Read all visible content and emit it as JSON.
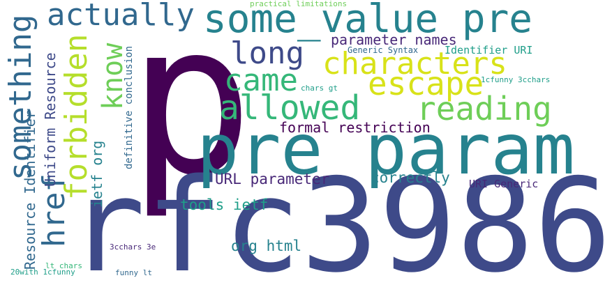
{
  "colors": {
    "dark_purple": "#440154",
    "indigo": "#482878",
    "slate_blue": "#3e4a89",
    "steel_blue": "#31688e",
    "teal": "#26828e",
    "sea_green": "#1f9e89",
    "green": "#35b779",
    "lime": "#6ece58",
    "yellow_green": "#b5de2b",
    "yellow": "#d8e219"
  },
  "words": {
    "p": "p",
    "rfc3986": "rfc3986",
    "pre_param": "pre param",
    "some_value_pre": "some_value pre",
    "actually": "actually",
    "characters": "characters",
    "allowed": "allowed",
    "long": "long",
    "came": "came",
    "escape": "escape",
    "reading": "reading",
    "something": "something",
    "forbidden": "forbidden",
    "know": "know",
    "href": "href",
    "formal_restriction": "formal restriction",
    "parameter_names": "parameter names",
    "url_parameter": "URL parameter",
    "correctly": "correctly",
    "uri_generic": "URI Generic",
    "tools_ietf": "tools ietf",
    "org_html": "org html",
    "generic_syntax": "Generic Syntax",
    "identifier_uri": "Identifier URI",
    "practical_limitations": "practical limitations",
    "chars_gt": "chars gt",
    "1cfunny_3cchars": "1cfunny 3cchars",
    "3cchars_3e": "3cchars 3e",
    "lt_chars": "lt chars",
    "20with_1cfunny": "20with 1cfunny",
    "funny_lt": "funny lt",
    "uniform_resource": "Uniform Resource",
    "resource_identifier": "Resource Identifier",
    "ietf_org": "ietf org",
    "definitive_conclusion": "definitive conclusion"
  }
}
